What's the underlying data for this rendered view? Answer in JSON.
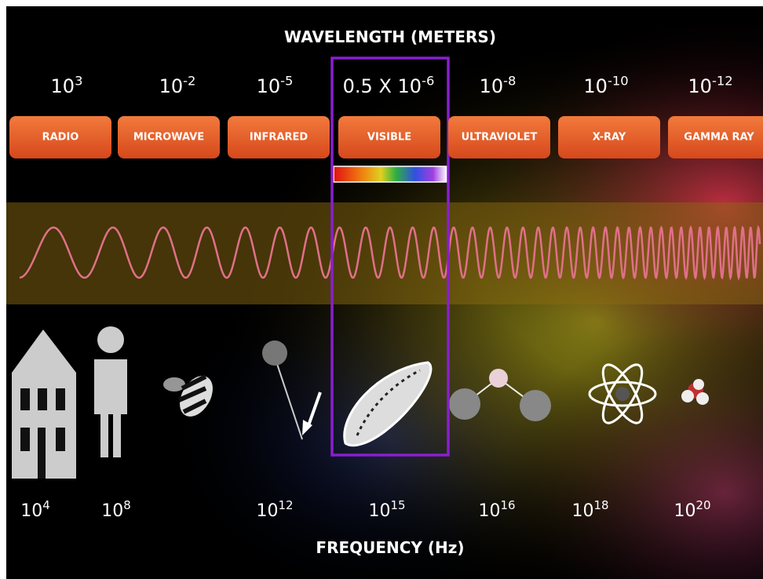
{
  "wavelength_title": "WAVELENGTH (METERS)",
  "wavelengths": [
    {
      "base": "10",
      "exp": "3"
    },
    {
      "base": "10",
      "exp": "-2"
    },
    {
      "base": "10",
      "exp": "-5"
    },
    {
      "base": "0.5 X 10",
      "exp": "-6"
    },
    {
      "base": "10",
      "exp": "-8"
    },
    {
      "base": "10",
      "exp": "-10"
    },
    {
      "base": "10",
      "exp": "-12"
    }
  ],
  "bands": [
    "RADIO",
    "MICROWAVE",
    "INFRARED",
    "VISIBLE",
    "ULTRAVIOLET",
    "X-RAY",
    "GAMMA RAY"
  ],
  "frequencies": [
    {
      "base": "10",
      "exp": "4"
    },
    {
      "base": "10",
      "exp": "8"
    },
    {
      "base": "10",
      "exp": "12"
    },
    {
      "base": "10",
      "exp": "15"
    },
    {
      "base": "10",
      "exp": "16"
    },
    {
      "base": "10",
      "exp": "18"
    },
    {
      "base": "10",
      "exp": "20"
    }
  ],
  "frequency_title": "FREQUENCY (Hz)"
}
